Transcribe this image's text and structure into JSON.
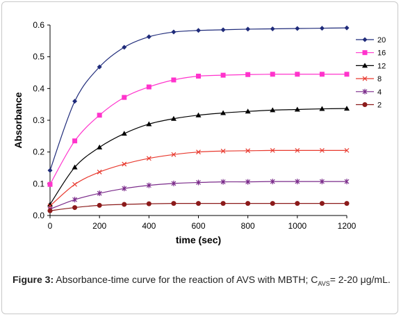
{
  "chart_data": {
    "type": "line",
    "title": "",
    "xlabel": "time (sec)",
    "ylabel": "Absorbance",
    "xlim": [
      0,
      1200
    ],
    "ylim": [
      0,
      0.6
    ],
    "xticks": [
      0,
      200,
      400,
      600,
      800,
      1000,
      1200
    ],
    "yticks": [
      0.0,
      0.1,
      0.2,
      0.3,
      0.4,
      0.5,
      0.6
    ],
    "ytick_labels": [
      "0.0",
      "0.1",
      "0.2",
      "0.3",
      "0.4",
      "0.5",
      "0.6"
    ],
    "grid": false,
    "legend_position": "right",
    "x": [
      0,
      100,
      200,
      300,
      400,
      500,
      600,
      700,
      800,
      900,
      1000,
      1100,
      1200
    ],
    "series": [
      {
        "name": "20",
        "marker": "diamond",
        "color": "#1f2b7a",
        "values": [
          0.142,
          0.36,
          0.468,
          0.53,
          0.563,
          0.578,
          0.583,
          0.585,
          0.587,
          0.588,
          0.589,
          0.59,
          0.591
        ]
      },
      {
        "name": "16",
        "marker": "square",
        "color": "#ff33cc",
        "values": [
          0.098,
          0.235,
          0.316,
          0.372,
          0.405,
          0.427,
          0.439,
          0.442,
          0.444,
          0.445,
          0.445,
          0.445,
          0.445
        ]
      },
      {
        "name": "12",
        "marker": "triangle",
        "color": "#000000",
        "values": [
          0.035,
          0.152,
          0.215,
          0.258,
          0.288,
          0.305,
          0.316,
          0.323,
          0.328,
          0.332,
          0.334,
          0.336,
          0.337
        ]
      },
      {
        "name": "8",
        "marker": "x",
        "color": "#e8392e",
        "values": [
          0.03,
          0.098,
          0.137,
          0.162,
          0.18,
          0.192,
          0.2,
          0.203,
          0.204,
          0.205,
          0.205,
          0.205,
          0.205
        ]
      },
      {
        "name": "4",
        "marker": "star",
        "color": "#7a2a8a",
        "values": [
          0.02,
          0.05,
          0.07,
          0.085,
          0.095,
          0.101,
          0.104,
          0.106,
          0.106,
          0.107,
          0.107,
          0.107,
          0.107
        ]
      },
      {
        "name": "2",
        "marker": "circle",
        "color": "#8b1a1a",
        "values": [
          0.015,
          0.025,
          0.032,
          0.035,
          0.037,
          0.038,
          0.038,
          0.038,
          0.038,
          0.038,
          0.038,
          0.038,
          0.038
        ]
      }
    ]
  },
  "caption": {
    "label": "Figure 3:",
    "text_before_sub": " Absorbance-time curve for the reaction of AVS with MBTH; C",
    "subscript": "AVS",
    "text_after_sub": "= 2-20 μg/mL."
  }
}
